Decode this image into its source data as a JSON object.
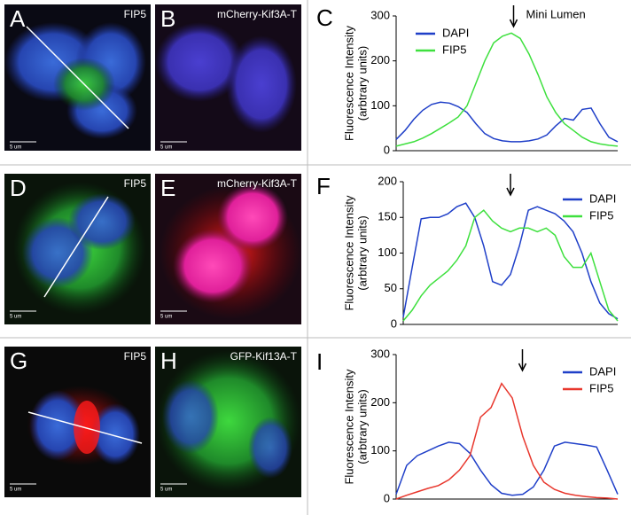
{
  "images": [
    {
      "letter": "A",
      "label": "FIP5",
      "scale": "5 um"
    },
    {
      "letter": "B",
      "label": "mCherry-Kif3A-T",
      "scale": "5 um"
    },
    {
      "letter": "D",
      "label": "FIP5",
      "scale": "5 um"
    },
    {
      "letter": "E",
      "label": "mCherry-Kif3A-T",
      "scale": "5 um"
    },
    {
      "letter": "G",
      "label": "FIP5",
      "scale": "5 um"
    },
    {
      "letter": "H",
      "label": "GFP-Kif13A-T",
      "scale": "5 um"
    }
  ],
  "chart_data": [
    {
      "type": "line",
      "label": "C",
      "ylabel": [
        "Fluorescence Intensity",
        "(arbtrary units)"
      ],
      "annotation": "Mini Lumen",
      "ylim": [
        0,
        300
      ],
      "yticks": [
        0,
        100,
        200,
        300
      ],
      "legend": "top-left",
      "series": [
        {
          "name": "DAPI",
          "color": "#1f3fc8",
          "values": [
            25,
            45,
            70,
            90,
            103,
            108,
            106,
            98,
            85,
            60,
            38,
            27,
            22,
            20,
            20,
            22,
            26,
            35,
            55,
            72,
            68,
            92,
            95,
            60,
            30,
            20
          ]
        },
        {
          "name": "FIP5",
          "color": "#3ee03e",
          "values": [
            10,
            15,
            20,
            28,
            38,
            50,
            62,
            75,
            100,
            150,
            200,
            240,
            255,
            262,
            250,
            215,
            170,
            120,
            85,
            60,
            45,
            30,
            20,
            15,
            12,
            10
          ]
        }
      ]
    },
    {
      "type": "line",
      "label": "F",
      "ylabel": [
        "Fluorescence Intensity",
        "(arbtrary units)"
      ],
      "ylim": [
        0,
        200
      ],
      "yticks": [
        0,
        50,
        100,
        150,
        200
      ],
      "legend": "top-right",
      "series": [
        {
          "name": "DAPI",
          "color": "#1f3fc8",
          "values": [
            10,
            80,
            148,
            150,
            150,
            155,
            165,
            170,
            150,
            110,
            60,
            55,
            70,
            110,
            160,
            165,
            160,
            155,
            145,
            130,
            100,
            60,
            30,
            15,
            8
          ]
        },
        {
          "name": "FIP5",
          "color": "#3ee03e",
          "values": [
            5,
            20,
            40,
            55,
            65,
            75,
            90,
            110,
            150,
            160,
            145,
            135,
            130,
            135,
            135,
            130,
            135,
            125,
            95,
            80,
            80,
            100,
            60,
            20,
            5
          ]
        }
      ]
    },
    {
      "type": "line",
      "label": "I",
      "ylabel": [
        "Fluorescence Intensity",
        "(arbtrary units)"
      ],
      "ylim": [
        0,
        300
      ],
      "yticks": [
        0,
        100,
        200,
        300
      ],
      "legend": "top-right",
      "series": [
        {
          "name": "DAPI",
          "color": "#1f3fc8",
          "values": [
            10,
            70,
            90,
            100,
            110,
            118,
            115,
            95,
            60,
            30,
            12,
            8,
            10,
            25,
            60,
            110,
            118,
            115,
            112,
            108,
            60,
            10
          ]
        },
        {
          "name": "FIP5",
          "color": "#e8362c",
          "values": [
            0,
            8,
            15,
            22,
            28,
            40,
            60,
            90,
            170,
            190,
            240,
            210,
            130,
            70,
            35,
            20,
            12,
            8,
            5,
            3,
            2,
            0
          ]
        }
      ]
    }
  ]
}
